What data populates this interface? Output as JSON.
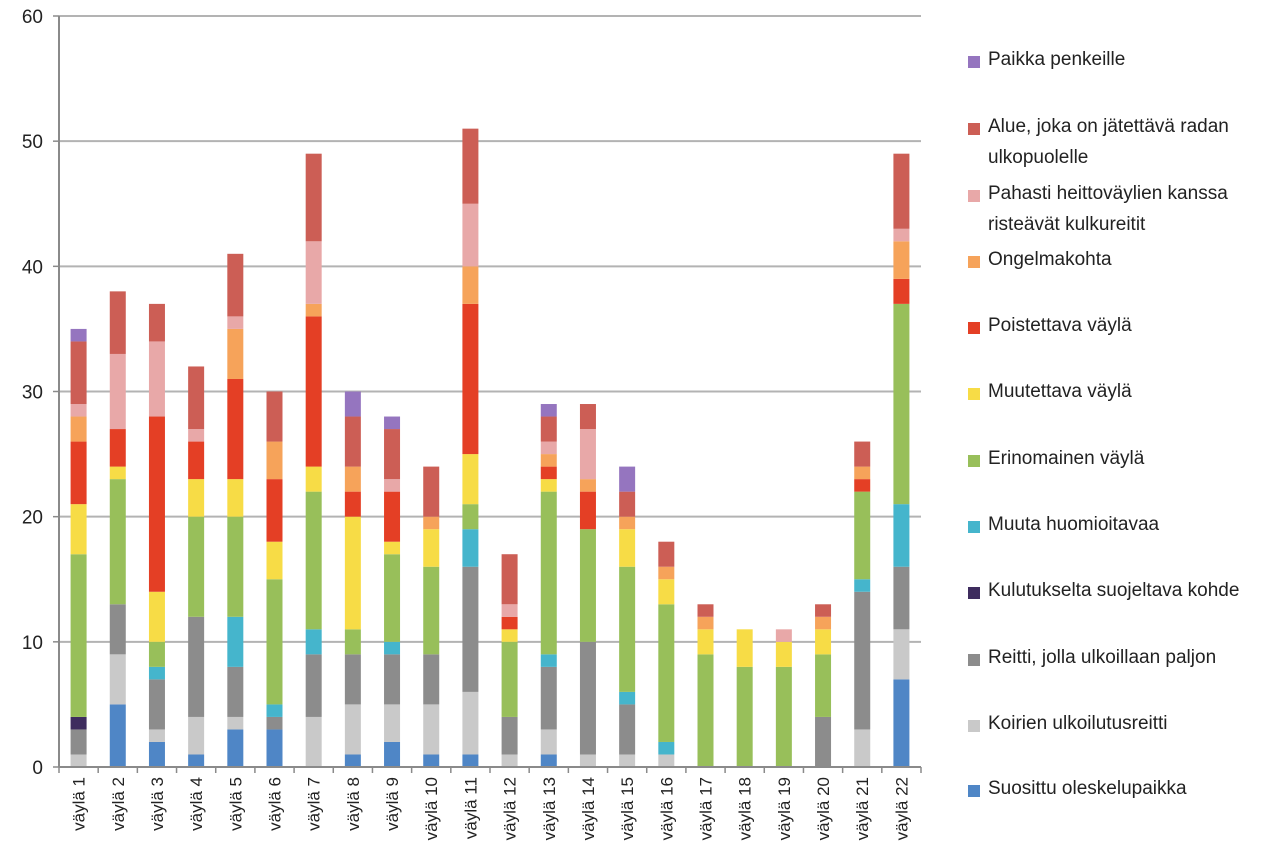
{
  "chart_data": {
    "type": "bar",
    "stacked": true,
    "categories": [
      "väylä 1",
      "väylä 2",
      "väylä 3",
      "väylä 4",
      "väylä 5",
      "väylä 6",
      "väylä 7",
      "väylä 8",
      "väylä 9",
      "väylä 10",
      "väylä 11",
      "väylä 12",
      "väylä 13",
      "väylä 14",
      "väylä 15",
      "väylä 16",
      "väylä 17",
      "väylä 18",
      "väylä 19",
      "väylä 20",
      "väylä 21",
      "väylä 22"
    ],
    "ylim": [
      0,
      60
    ],
    "yticks": [
      0,
      10,
      20,
      30,
      40,
      50,
      60
    ],
    "grid": true,
    "legend_position": "right",
    "series": [
      {
        "name": "Suosittu oleskelupaikka",
        "color": "#4f86c6",
        "values": [
          0,
          5,
          2,
          1,
          3,
          3,
          0,
          1,
          2,
          1,
          1,
          0,
          1,
          0,
          0,
          0,
          0,
          0,
          0,
          0,
          0,
          7
        ]
      },
      {
        "name": "Koirien ulkoilutusreitti",
        "color": "#c9c9c9",
        "values": [
          1,
          4,
          1,
          3,
          1,
          0,
          4,
          4,
          3,
          4,
          5,
          1,
          2,
          1,
          1,
          1,
          0,
          0,
          0,
          0,
          3,
          4
        ]
      },
      {
        "name": "Reitti, jolla ulkoillaan paljon",
        "color": "#8c8c8c",
        "values": [
          2,
          4,
          4,
          8,
          4,
          1,
          5,
          4,
          4,
          4,
          10,
          3,
          5,
          9,
          4,
          0,
          0,
          0,
          0,
          4,
          11,
          5
        ]
      },
      {
        "name": "Kulutukselta suojeltava kohde",
        "color": "#3e2c5e",
        "values": [
          1,
          0,
          0,
          0,
          0,
          0,
          0,
          0,
          0,
          0,
          0,
          0,
          0,
          0,
          0,
          0,
          0,
          0,
          0,
          0,
          0,
          0
        ]
      },
      {
        "name": "Muuta huomioitavaa",
        "color": "#45b5cc",
        "values": [
          0,
          0,
          1,
          0,
          4,
          1,
          2,
          0,
          1,
          0,
          3,
          0,
          1,
          0,
          1,
          1,
          0,
          0,
          0,
          0,
          1,
          5
        ]
      },
      {
        "name": "Erinomainen väylä",
        "color": "#98bf5a",
        "values": [
          13,
          10,
          2,
          8,
          8,
          10,
          11,
          2,
          7,
          7,
          2,
          6,
          13,
          9,
          10,
          11,
          9,
          8,
          8,
          5,
          7,
          16
        ]
      },
      {
        "name": "Muutettava väylä",
        "color": "#f7dc46",
        "values": [
          4,
          1,
          4,
          3,
          3,
          3,
          2,
          9,
          1,
          3,
          4,
          1,
          1,
          0,
          3,
          2,
          2,
          3,
          2,
          2,
          0,
          0
        ]
      },
      {
        "name": "Poistettava väylä",
        "color": "#e43f25",
        "values": [
          5,
          3,
          14,
          3,
          8,
          5,
          12,
          2,
          4,
          0,
          12,
          1,
          1,
          3,
          0,
          0,
          0,
          0,
          0,
          0,
          1,
          2
        ]
      },
      {
        "name": "Ongelmakohta",
        "color": "#f6a35a",
        "values": [
          2,
          0,
          0,
          0,
          4,
          3,
          1,
          2,
          0,
          1,
          3,
          0,
          1,
          1,
          1,
          1,
          1,
          0,
          0,
          1,
          1,
          3
        ]
      },
      {
        "name": "Pahasti heittoväylien kanssa risteävät kulkureitit",
        "color": "#e8a8a8",
        "values": [
          1,
          6,
          6,
          1,
          1,
          0,
          5,
          0,
          1,
          0,
          5,
          1,
          1,
          4,
          0,
          0,
          0,
          0,
          1,
          0,
          0,
          1
        ]
      },
      {
        "name": "Alue, joka on jätettävä radan ulkopuolelle",
        "color": "#cc5e55",
        "values": [
          5,
          5,
          3,
          5,
          5,
          4,
          7,
          4,
          4,
          4,
          6,
          4,
          2,
          2,
          2,
          2,
          1,
          0,
          0,
          1,
          2,
          6
        ]
      },
      {
        "name": "Paikka penkeille",
        "color": "#9575bf",
        "values": [
          1,
          0,
          0,
          0,
          0,
          0,
          0,
          2,
          1,
          0,
          0,
          0,
          1,
          0,
          2,
          0,
          0,
          0,
          0,
          0,
          0,
          0
        ]
      }
    ]
  },
  "legend": [
    {
      "label": "Paikka penkeille",
      "color": "#9575bf"
    },
    {
      "label": "Alue, joka on jätettävä radan ulkopuolelle",
      "color": "#cc5e55"
    },
    {
      "label": "Pahasti heittoväylien kanssa risteävät kulkureitit",
      "color": "#e8a8a8"
    },
    {
      "label": "Ongelmakohta",
      "color": "#f6a35a"
    },
    {
      "label": "Poistettava väylä",
      "color": "#e43f25"
    },
    {
      "label": "Muutettava väylä",
      "color": "#f7dc46"
    },
    {
      "label": "Erinomainen väylä",
      "color": "#98bf5a"
    },
    {
      "label": "Muuta huomioitavaa",
      "color": "#45b5cc"
    },
    {
      "label": "Kulutukselta suojeltava kohde",
      "color": "#3e2c5e"
    },
    {
      "label": "Reitti, jolla ulkoillaan paljon",
      "color": "#8c8c8c"
    },
    {
      "label": "Koirien ulkoilutusreitti",
      "color": "#c9c9c9"
    },
    {
      "label": "Suosittu oleskelupaikka",
      "color": "#4f86c6"
    }
  ]
}
